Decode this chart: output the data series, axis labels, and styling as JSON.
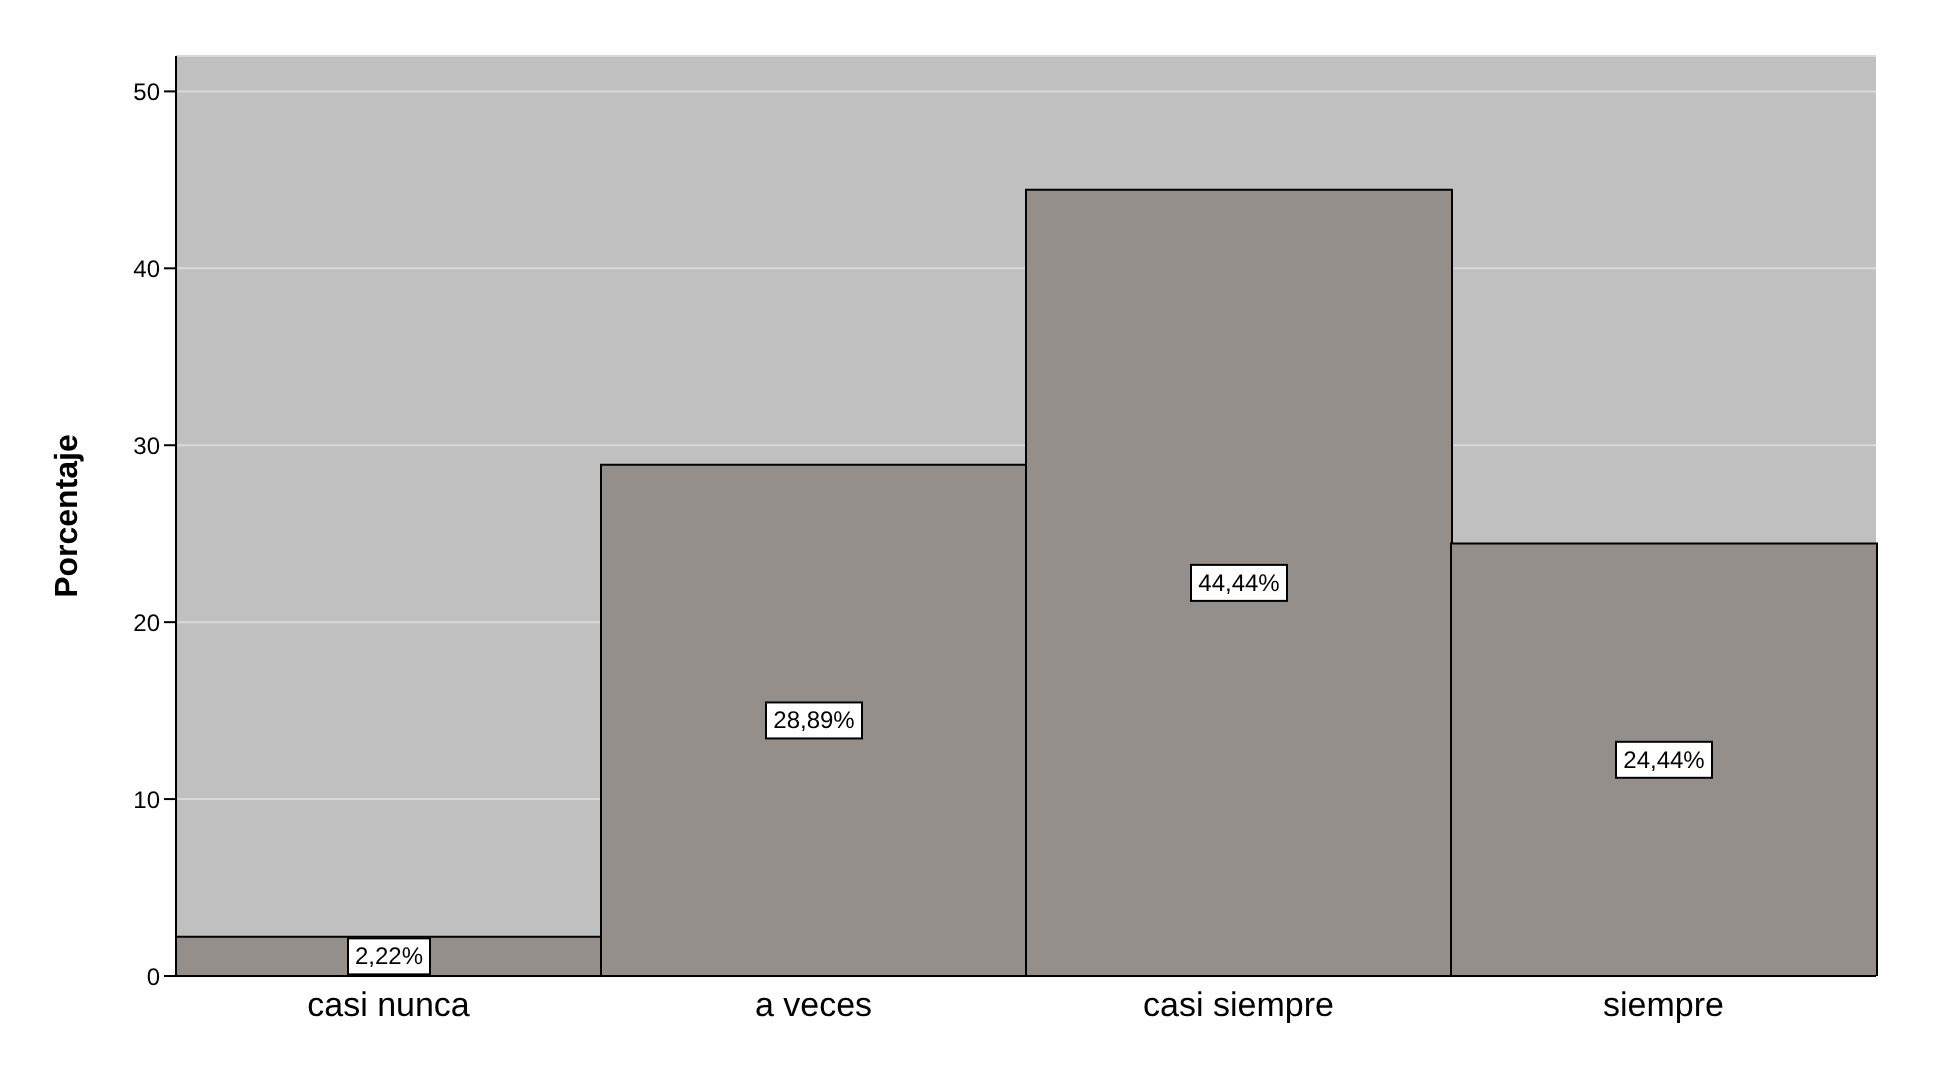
{
  "chart_data": {
    "type": "bar",
    "ylabel": "Porcentaje",
    "categories": [
      "casi nunca",
      "a veces",
      "casi siempre",
      "siempre"
    ],
    "values": [
      2.22,
      28.89,
      44.44,
      24.44
    ],
    "value_labels": [
      "2,22%",
      "28,89%",
      "44,44%",
      "24,44%"
    ],
    "color": "#958f8c",
    "ylim": [
      0,
      52
    ],
    "yticks": [
      0,
      10,
      20,
      30,
      40,
      50
    ],
    "grid": "y"
  }
}
